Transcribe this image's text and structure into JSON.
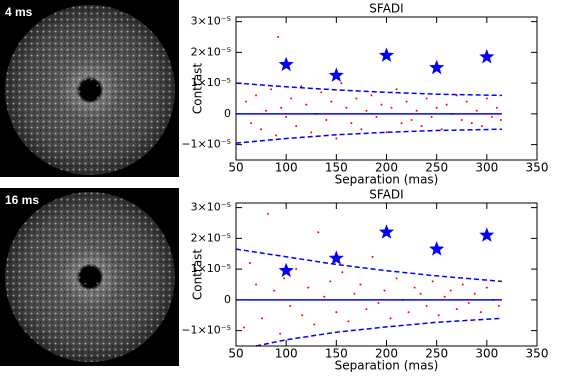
{
  "images": [
    {
      "label": "4 ms"
    },
    {
      "label": "16 ms"
    }
  ],
  "chart_data": [
    {
      "type": "scatter",
      "title": "SFADI",
      "x_label": "Separation (mas)",
      "y_label": "Contrast",
      "xlim": [
        50,
        350
      ],
      "ylim": [
        -1.5e-05,
        3.15e-05
      ],
      "xticks": [
        50,
        100,
        150,
        200,
        250,
        300,
        350
      ],
      "yticks": [
        {
          "value": -1e-05,
          "label": "−1×10⁻⁵"
        },
        0,
        {
          "value": 1e-05,
          "label": "1×10⁻⁵"
        },
        {
          "value": 2e-05,
          "label": "2×10⁻⁵"
        },
        {
          "value": 3e-05,
          "label": "3×10⁻⁵"
        }
      ],
      "series": [
        {
          "type": "scatter",
          "marker": "dot",
          "color": "#ff0000",
          "x": [
            60,
            65,
            70,
            75,
            80,
            85,
            90,
            92,
            95,
            100,
            105,
            110,
            115,
            120,
            125,
            130,
            135,
            140,
            145,
            150,
            155,
            160,
            165,
            170,
            175,
            180,
            185,
            190,
            195,
            200,
            205,
            210,
            215,
            220,
            225,
            230,
            235,
            240,
            245,
            250,
            255,
            260,
            265,
            270,
            275,
            280,
            285,
            290,
            295,
            300,
            305,
            310,
            314
          ],
          "values": [
            4e-06,
            -3e-06,
            6e-06,
            -5e-06,
            1e-06,
            8e-06,
            -7e-06,
            2.5e-05,
            2e-06,
            -1e-06,
            5e-06,
            -4e-06,
            9e-06,
            3e-06,
            -6e-06,
            0,
            7e-06,
            -2e-06,
            4e-06,
            -8e-06,
            1e-05,
            2e-06,
            -3e-06,
            5e-06,
            -5e-06,
            1e-06,
            6e-06,
            -1e-06,
            3e-06,
            -6e-06,
            2e-06,
            8e-06,
            -3e-06,
            4e-06,
            -2e-06,
            1e-06,
            -4e-06,
            5e-06,
            -1e-06,
            2e-06,
            -5e-06,
            3e-06,
            0,
            6e-06,
            -2e-06,
            4e-06,
            -3e-06,
            1e-06,
            -4e-06,
            5e-06,
            -1e-06,
            2e-06,
            -2e-06
          ]
        },
        {
          "type": "line",
          "linestyle": "dashed",
          "color": "#0000ff",
          "x": [
            50,
            100,
            150,
            200,
            250,
            315
          ],
          "values": [
            1e-05,
            8.8e-06,
            7.8e-06,
            7e-06,
            6.4e-06,
            6e-06
          ]
        },
        {
          "type": "line",
          "linestyle": "dashed",
          "color": "#0000ff",
          "x": [
            50,
            100,
            150,
            200,
            250,
            315
          ],
          "values": [
            -9.5e-06,
            -8e-06,
            -6.8e-06,
            -6e-06,
            -5.4e-06,
            -5e-06
          ]
        },
        {
          "type": "line",
          "linestyle": "solid",
          "color": "#0000ff",
          "x": [
            50,
            315
          ],
          "values": [
            0,
            0
          ]
        },
        {
          "type": "scatter",
          "marker": "star",
          "color": "#0000ff",
          "x": [
            100,
            150,
            200,
            250,
            300
          ],
          "values": [
            1.6e-05,
            1.25e-05,
            1.9e-05,
            1.5e-05,
            1.85e-05
          ]
        }
      ]
    },
    {
      "type": "scatter",
      "title": "SFADI",
      "x_label": "Separation (mas)",
      "y_label": "Contrast",
      "xlim": [
        50,
        350
      ],
      "ylim": [
        -1.5e-05,
        3.15e-05
      ],
      "xticks": [
        50,
        100,
        150,
        200,
        250,
        300,
        350
      ],
      "yticks": [
        {
          "value": -1e-05,
          "label": "−1×10⁻⁵"
        },
        0,
        {
          "value": 1e-05,
          "label": "1×10⁻⁵"
        },
        {
          "value": 2e-05,
          "label": "2×10⁻⁵"
        },
        {
          "value": 3e-05,
          "label": "3×10⁻⁵"
        }
      ],
      "series": [
        {
          "type": "scatter",
          "marker": "dot",
          "color": "#ff0000",
          "x": [
            58,
            64,
            70,
            76,
            82,
            88,
            94,
            98,
            104,
            110,
            116,
            122,
            128,
            132,
            138,
            144,
            150,
            156,
            162,
            168,
            174,
            180,
            186,
            192,
            198,
            204,
            210,
            216,
            222,
            228,
            234,
            240,
            246,
            252,
            258,
            264,
            270,
            276,
            282,
            288,
            294,
            300,
            306,
            312
          ],
          "values": [
            -9e-06,
            1.2e-05,
            5e-06,
            -6e-06,
            2.8e-05,
            3e-06,
            -1.1e-05,
            7e-06,
            -2e-06,
            1e-05,
            -5e-06,
            4e-06,
            -8e-06,
            2.2e-05,
            1e-06,
            6e-06,
            -4e-06,
            9e-06,
            -7e-06,
            2e-06,
            5e-06,
            -3e-06,
            1.4e-05,
            -1e-06,
            3e-06,
            -6e-06,
            7e-06,
            0,
            -4e-06,
            4e-06,
            2e-06,
            -2e-06,
            6e-06,
            -5e-06,
            1e-06,
            3e-06,
            -3e-06,
            5e-06,
            -1e-06,
            2e-06,
            -4e-06,
            4e-06,
            0,
            -2e-06
          ]
        },
        {
          "type": "line",
          "linestyle": "dashed",
          "color": "#0000ff",
          "x": [
            50,
            100,
            150,
            200,
            250,
            315
          ],
          "values": [
            1.65e-05,
            1.4e-05,
            1.15e-05,
            9.5e-06,
            7.8e-06,
            6e-06
          ]
        },
        {
          "type": "line",
          "linestyle": "dashed",
          "color": "#0000ff",
          "x": [
            70,
            100,
            150,
            200,
            250,
            315
          ],
          "values": [
            -1.5e-05,
            -1.3e-05,
            -1.05e-05,
            -8.8e-06,
            -7.3e-06,
            -6e-06
          ]
        },
        {
          "type": "line",
          "linestyle": "solid",
          "color": "#0000ff",
          "x": [
            50,
            315
          ],
          "values": [
            0,
            0
          ]
        },
        {
          "type": "scatter",
          "marker": "star",
          "color": "#0000ff",
          "x": [
            100,
            150,
            200,
            250,
            300
          ],
          "values": [
            9.5e-06,
            1.35e-05,
            2.2e-05,
            1.65e-05,
            2.1e-05
          ]
        }
      ]
    }
  ]
}
